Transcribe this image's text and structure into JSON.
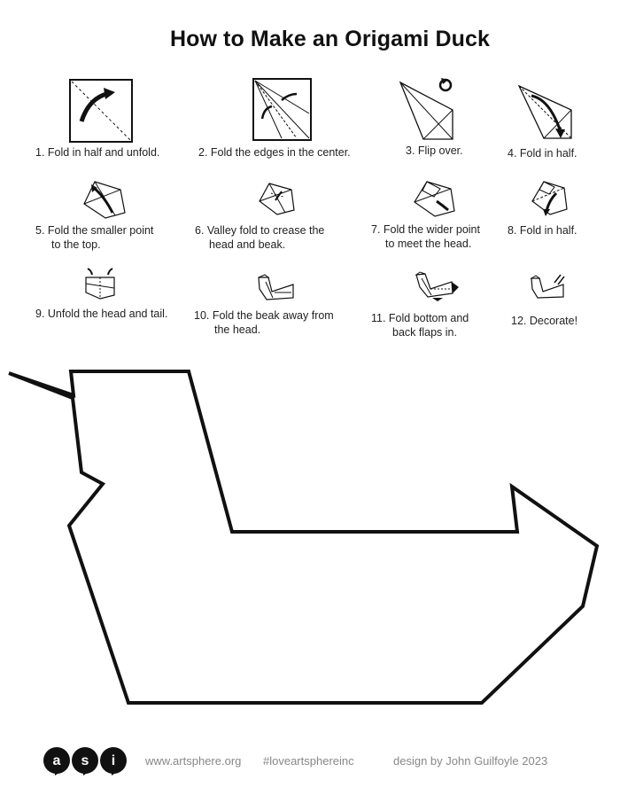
{
  "title": "How to Make an Origami Duck",
  "steps": [
    {
      "line1": "1. Fold in half and unfold.",
      "line2": ""
    },
    {
      "line1": "2. Fold the edges in the center.",
      "line2": ""
    },
    {
      "line1": "3. Flip over.",
      "line2": ""
    },
    {
      "line1": "4. Fold in half.",
      "line2": ""
    },
    {
      "line1": "5. Fold the smaller point",
      "line2": "to the top."
    },
    {
      "line1": "6. Valley fold to crease the",
      "line2": "head and beak."
    },
    {
      "line1": "7. Fold the wider point",
      "line2": "to meet the head."
    },
    {
      "line1": "8. Fold in half.",
      "line2": ""
    },
    {
      "line1": "9. Unfold the head and tail.",
      "line2": ""
    },
    {
      "line1": "10. Fold the beak away from",
      "line2": "the head."
    },
    {
      "line1": "11. Fold bottom and",
      "line2": "back flaps in."
    },
    {
      "line1": "12. Decorate!",
      "line2": ""
    }
  ],
  "footer": {
    "logo_letters": [
      "a",
      "s",
      "i"
    ],
    "website": "www.artsphere.org",
    "hashtag": "#loveartsphereinc",
    "credit": "design by John Guilfoyle 2023"
  }
}
